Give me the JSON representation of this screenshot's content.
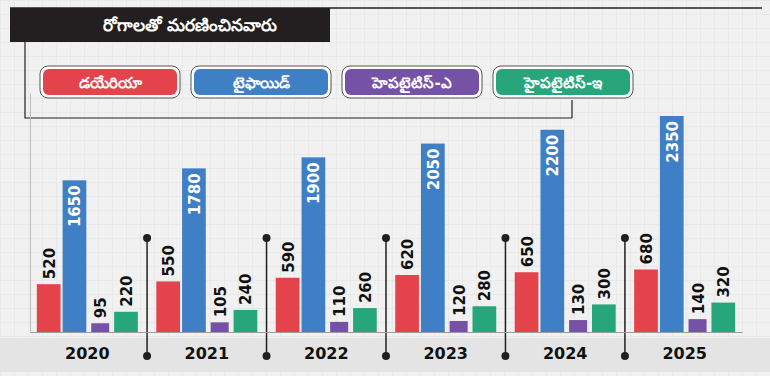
{
  "chart_data": {
    "type": "bar",
    "title": "రోగాలతో మరణించినవారు",
    "categories": [
      "2020",
      "2021",
      "2022",
      "2023",
      "2024",
      "2025"
    ],
    "series": [
      {
        "name": "డయేరియా",
        "color": "#e5434c",
        "values": [
          520,
          550,
          590,
          620,
          650,
          680
        ]
      },
      {
        "name": "టైఫాయిడ్",
        "color": "#3f7fc6",
        "values": [
          1650,
          1780,
          1900,
          2050,
          2200,
          2350
        ]
      },
      {
        "name": "హెపటైటిస్-ఎ",
        "color": "#7552a6",
        "values": [
          95,
          105,
          110,
          120,
          130,
          140
        ]
      },
      {
        "name": "హైపటైటిస్-ఇ",
        "color": "#27a67c",
        "values": [
          220,
          240,
          260,
          280,
          300,
          320
        ]
      }
    ],
    "ylim": [
      0,
      2600
    ],
    "tick_labels": "x",
    "data_labels": true,
    "legend": "top",
    "grid": false
  }
}
